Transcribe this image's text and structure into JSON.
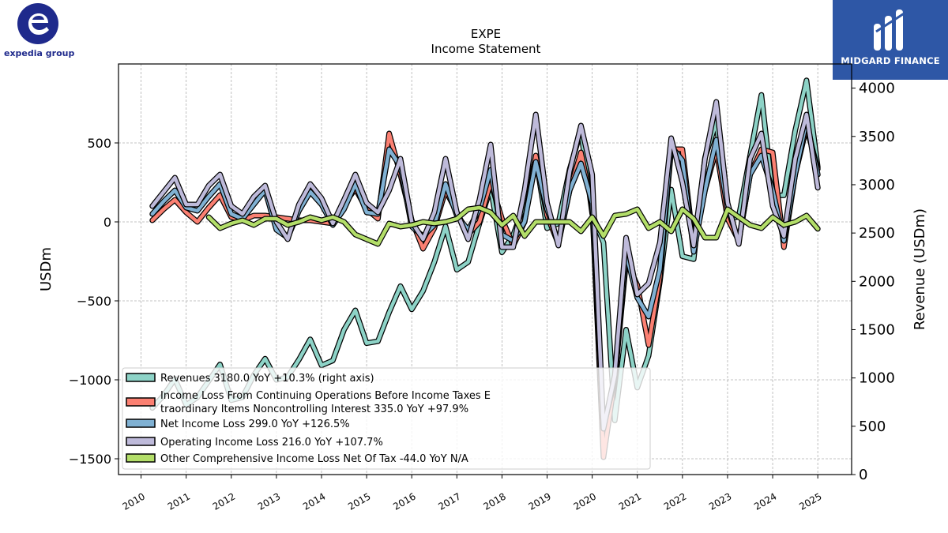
{
  "branding": {
    "company_logo_text": "expedia group",
    "watermark_text": "MIDGARD FINANCE",
    "company_color": "#1f2a8c",
    "watermark_bg": "#2e57a6"
  },
  "chart_data": {
    "type": "line",
    "title": "EXPE",
    "subtitle": "Income Statement",
    "ylabel_left": "USDm",
    "ylabel_right": "Revenue (USDm)",
    "ylim_left": [
      -1600,
      1000
    ],
    "ylim_right": [
      0,
      4250
    ],
    "left_ticks": [
      "500",
      "0",
      "−500",
      "−1000",
      "−1500"
    ],
    "left_tick_values": [
      500,
      0,
      -500,
      -1000,
      -1500
    ],
    "right_ticks": [
      "4000",
      "3500",
      "3000",
      "2500",
      "2000",
      "1500",
      "1000",
      "500",
      "0"
    ],
    "right_tick_values": [
      4000,
      3500,
      3000,
      2500,
      2000,
      1500,
      1000,
      500,
      0
    ],
    "xlim": [
      2009.5,
      2025.75
    ],
    "x_tick_labels": [
      "2010",
      "2011",
      "2012",
      "2013",
      "2014",
      "2015",
      "2016",
      "2017",
      "2018",
      "2019",
      "2020",
      "2021",
      "2022",
      "2023",
      "2024",
      "2025"
    ],
    "x_tick_values": [
      2010,
      2011,
      2012,
      2013,
      2014,
      2015,
      2016,
      2017,
      2018,
      2019,
      2020,
      2021,
      2022,
      2023,
      2024,
      2025
    ],
    "grid": true,
    "legend_position": "lower-left",
    "x": [
      2010.25,
      2010.5,
      2010.75,
      2011.0,
      2011.25,
      2011.5,
      2011.75,
      2012.0,
      2012.25,
      2012.5,
      2012.75,
      2013.0,
      2013.25,
      2013.5,
      2013.75,
      2014.0,
      2014.25,
      2014.5,
      2014.75,
      2015.0,
      2015.25,
      2015.5,
      2015.75,
      2016.0,
      2016.25,
      2016.5,
      2016.75,
      2017.0,
      2017.25,
      2017.5,
      2017.75,
      2018.0,
      2018.25,
      2018.5,
      2018.75,
      2019.0,
      2019.25,
      2019.5,
      2019.75,
      2020.0,
      2020.25,
      2020.5,
      2020.75,
      2021.0,
      2021.25,
      2021.5,
      2021.75,
      2022.0,
      2022.25,
      2022.5,
      2022.75,
      2023.0,
      2023.25,
      2023.5,
      2023.75,
      2024.0,
      2024.25,
      2024.5,
      2024.75,
      2025.0
    ],
    "series": [
      {
        "name": "Revenues  3180.0 YoY +10.3% (right axis)",
        "axis": "right",
        "color": "#8dd3c7",
        "values": [
          690,
          820,
          990,
          720,
          800,
          970,
          1140,
          770,
          800,
          1030,
          1200,
          980,
          1010,
          1190,
          1400,
          1130,
          1180,
          1500,
          1700,
          1360,
          1380,
          1680,
          1950,
          1710,
          1900,
          2200,
          2570,
          2120,
          2200,
          2600,
          2970,
          2300,
          2480,
          2800,
          3280,
          2550,
          2600,
          3160,
          3560,
          2700,
          2400,
          560,
          1500,
          900,
          1230,
          2000,
          2950,
          2260,
          2230,
          3280,
          3650,
          2640,
          2670,
          3300,
          3930,
          2890,
          2890,
          3560,
          4080,
          3180
        ]
      },
      {
        "name": "Income Loss From Continuing Operations Before Income Taxes Extraordinary Items Noncontrolling Interest  335.0 YoY +97.9%",
        "axis": "left",
        "color": "#fb8072",
        "values": [
          10,
          80,
          140,
          60,
          0,
          90,
          170,
          30,
          10,
          40,
          40,
          30,
          20,
          10,
          10,
          0,
          -10,
          110,
          210,
          80,
          20,
          560,
          300,
          10,
          -170,
          -40,
          200,
          60,
          -80,
          0,
          250,
          20,
          -150,
          0,
          420,
          40,
          -140,
          200,
          440,
          100,
          -1490,
          -1000,
          -250,
          -400,
          -780,
          -350,
          460,
          460,
          -160,
          200,
          460,
          20,
          -120,
          300,
          460,
          440,
          -160,
          300,
          600,
          335
        ]
      },
      {
        "name": "Net Income Loss  299.0 YoY +126.5%",
        "axis": "left",
        "color": "#80b1d3",
        "values": [
          50,
          130,
          200,
          90,
          70,
          160,
          240,
          50,
          20,
          110,
          200,
          -50,
          -100,
          70,
          190,
          110,
          -20,
          80,
          240,
          60,
          50,
          460,
          350,
          -30,
          -90,
          -20,
          240,
          40,
          -50,
          80,
          330,
          -80,
          -120,
          0,
          380,
          80,
          -130,
          200,
          370,
          120,
          -1300,
          -1000,
          -200,
          -480,
          -600,
          -300,
          480,
          390,
          -190,
          200,
          520,
          80,
          -120,
          300,
          420,
          200,
          -120,
          300,
          640,
          299
        ]
      },
      {
        "name": "Operating Income Loss  216.0 YoY +107.7%",
        "axis": "left",
        "color": "#bebada",
        "values": [
          100,
          190,
          280,
          110,
          110,
          230,
          300,
          100,
          50,
          160,
          230,
          0,
          -110,
          110,
          240,
          150,
          -10,
          140,
          300,
          120,
          60,
          200,
          400,
          0,
          -110,
          60,
          400,
          60,
          -110,
          140,
          490,
          -160,
          -160,
          200,
          680,
          120,
          -150,
          320,
          610,
          300,
          -1310,
          -970,
          -100,
          -460,
          -390,
          -130,
          530,
          250,
          -150,
          400,
          760,
          120,
          -140,
          400,
          560,
          100,
          -90,
          400,
          680,
          216
        ]
      },
      {
        "name": "Other Comprehensive Income Loss Net Of Tax  -44.0 YoY N/A",
        "axis": "left",
        "color": "#b3de69",
        "values": [
          null,
          null,
          null,
          null,
          null,
          30,
          -40,
          -10,
          10,
          -20,
          20,
          20,
          -20,
          0,
          30,
          10,
          30,
          0,
          -80,
          -110,
          -140,
          -10,
          -30,
          -20,
          0,
          -10,
          0,
          20,
          80,
          90,
          60,
          -20,
          40,
          -90,
          0,
          0,
          0,
          0,
          -60,
          30,
          -90,
          40,
          50,
          80,
          -40,
          0,
          -60,
          80,
          20,
          -100,
          -100,
          80,
          30,
          -20,
          -40,
          30,
          -20,
          0,
          40,
          -44
        ]
      }
    ]
  }
}
